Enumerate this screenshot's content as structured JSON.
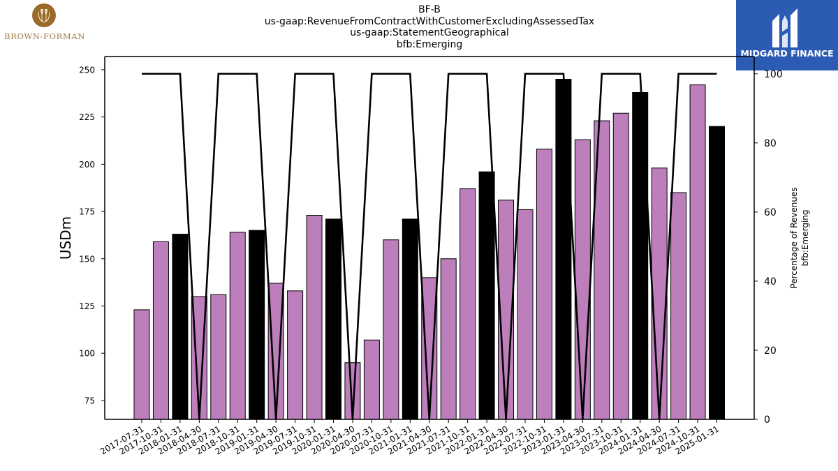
{
  "header": {
    "title_lines": [
      "BF-B",
      "us-gaap:RevenueFromContractWithCustomerExcludingAssessedTax",
      "us-gaap:StatementGeographical",
      "bfb:Emerging"
    ]
  },
  "logos": {
    "left": {
      "text": "BROWN-FORMAN",
      "color": "#9a6a2a"
    },
    "right": {
      "text": "MIDGARD FINANCE",
      "background": "#2b5bb3"
    }
  },
  "chart_data": {
    "type": "bar",
    "ylabel": "USDm",
    "y2label_lines": [
      "Percentage of Revenues",
      "bfb:Emerging"
    ],
    "ylim": [
      65,
      257
    ],
    "y2lim": [
      0,
      105
    ],
    "yticks": [
      75,
      100,
      125,
      150,
      175,
      200,
      225,
      250
    ],
    "y2ticks": [
      0,
      20,
      40,
      60,
      80,
      100
    ],
    "categories": [
      "2017-07-31",
      "2017-10-31",
      "2018-01-31",
      "2018-04-30",
      "2018-07-31",
      "2018-10-31",
      "2019-01-31",
      "2019-04-30",
      "2019-07-31",
      "2019-10-31",
      "2020-01-31",
      "2020-04-30",
      "2020-07-31",
      "2020-10-31",
      "2021-01-31",
      "2021-04-30",
      "2021-07-31",
      "2021-10-31",
      "2022-01-31",
      "2022-04-30",
      "2022-07-31",
      "2022-10-31",
      "2023-01-31",
      "2023-04-30",
      "2023-07-31",
      "2023-10-31",
      "2024-01-31",
      "2024-04-30",
      "2024-07-31",
      "2024-10-31",
      "2025-01-31"
    ],
    "series": [
      {
        "type": "bar",
        "values": [
          123,
          159,
          163,
          130,
          131,
          164,
          165,
          137,
          133,
          173,
          171,
          95,
          107,
          160,
          171,
          140,
          150,
          187,
          196,
          181,
          176,
          208,
          245,
          213,
          223,
          227,
          238,
          198,
          185,
          242,
          220
        ]
      },
      {
        "type": "line",
        "axis": "right",
        "values": [
          100,
          100,
          100,
          0,
          100,
          100,
          100,
          0,
          100,
          100,
          100,
          0,
          100,
          100,
          100,
          0,
          100,
          100,
          100,
          0,
          100,
          100,
          100,
          0,
          100,
          100,
          100,
          0,
          100,
          100,
          100
        ]
      }
    ],
    "colors": {
      "bar": "#bc7fbc",
      "bar_highlight": "#000000",
      "line": "#000000"
    },
    "highlight_indices": [
      2,
      6,
      10,
      14,
      18,
      22,
      26,
      30
    ],
    "grid": false,
    "legend": "none"
  }
}
